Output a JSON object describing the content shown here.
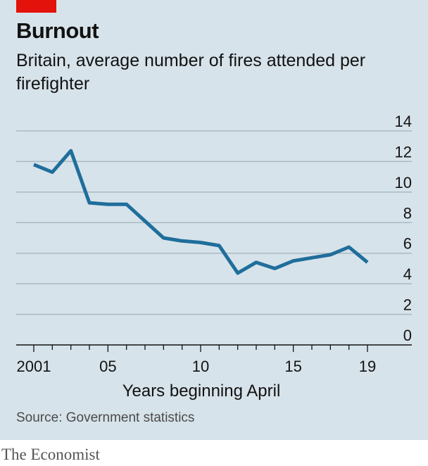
{
  "header": {
    "title": "Burnout",
    "subtitle": "Britain, average number of fires attended per firefighter"
  },
  "footer": {
    "source": "Source: Government statistics",
    "brand": "The Economist"
  },
  "colors": {
    "panel": "#d7e3ea",
    "line": "#1f6e9c",
    "accent": "#e3120b",
    "grid": "#a9b9c3"
  },
  "chart_data": {
    "type": "line",
    "title": "Burnout",
    "subtitle": "Britain, average number of fires attended per firefighter",
    "xlabel": "Years beginning April",
    "ylabel": "",
    "x": [
      2001,
      2002,
      2003,
      2004,
      2005,
      2006,
      2007,
      2008,
      2009,
      2010,
      2011,
      2012,
      2013,
      2014,
      2015,
      2016,
      2017,
      2018,
      2019
    ],
    "series": [
      {
        "values": [
          11.8,
          11.3,
          12.7,
          9.3,
          9.2,
          9.2,
          8.1,
          7.0,
          6.8,
          6.7,
          6.5,
          4.7,
          5.4,
          5.0,
          5.5,
          5.7,
          5.9,
          6.4,
          5.4
        ]
      }
    ],
    "xlim": [
      2001,
      2019
    ],
    "ylim": [
      0,
      14
    ],
    "yticks": [
      0,
      2,
      4,
      6,
      8,
      10,
      12,
      14
    ],
    "xticks": [
      2001,
      2005,
      2010,
      2015,
      2019
    ],
    "xtick_labels": [
      "2001",
      "05",
      "10",
      "15",
      "19"
    ],
    "grid": true,
    "legend": "none"
  }
}
